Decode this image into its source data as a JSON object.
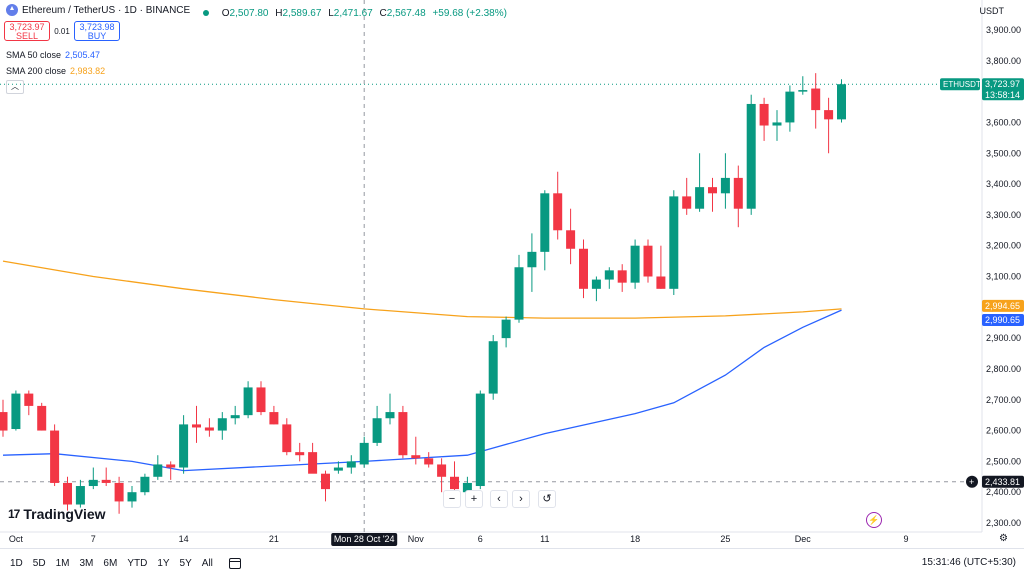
{
  "legend": {
    "title": "Ethereum / TetherUS · 1D · BINANCE",
    "open_k": "O",
    "open": "2,507.80",
    "high_k": "H",
    "high": "2,589.67",
    "low_k": "L",
    "low": "2,471.67",
    "close_k": "C",
    "close": "2,567.48",
    "change": "+59.68 (+2.38%)"
  },
  "trade": {
    "sell_price": "3,723.97",
    "sell_label": "SELL",
    "spread": "0.01",
    "buy_price": "3,723.98",
    "buy_label": "BUY"
  },
  "sma50": {
    "label": "SMA 50 close",
    "value": "2,505.47",
    "color": "#2962ff"
  },
  "sma200": {
    "label": "SMA 200 close",
    "value": "2,983.82",
    "color": "#f7a21b"
  },
  "collapse_icon": "chevron-up-icon",
  "currency": "USDT",
  "tags": {
    "symbol": "ETHUSDT",
    "last_price": "3,723.97",
    "countdown": "13:58:14",
    "sma200_tag": "2,994.65",
    "sma50_tag": "2,990.65",
    "crosshair_price": "2,433.81",
    "crosshair_date": "Mon 28 Oct '24"
  },
  "controls": {
    "zoom_out": "−",
    "zoom_in": "+",
    "scroll_left": "‹",
    "scroll_right": "›",
    "reset": "↺"
  },
  "logo": {
    "mark": "17",
    "text": "TradingView"
  },
  "bottom": {
    "ranges": [
      "1D",
      "5D",
      "1M",
      "3M",
      "6M",
      "YTD",
      "1Y",
      "5Y",
      "All"
    ],
    "time": "15:31:46 (UTC+5:30)"
  },
  "colors": {
    "up": "#089981",
    "down": "#f23645",
    "sma50": "#2962ff",
    "sma200": "#f7a21b"
  },
  "chart_data": {
    "type": "candlestick",
    "y_ticks": [
      2300,
      2400,
      2500,
      2600,
      2700,
      2800,
      2900,
      3000,
      3100,
      3200,
      3300,
      3400,
      3500,
      3600,
      3700,
      3800,
      3900
    ],
    "y_tick_labels": [
      "2,300.00",
      "2,400.00",
      "2,500.00",
      "2,600.00",
      "2,700.00",
      "2,800.00",
      "2,900.00",
      "3,000.00",
      "3,100.00",
      "3,200.00",
      "3,300.00",
      "3,400.00",
      "3,500.00",
      "3,600.00",
      "3,700.00",
      "3,800.00",
      "3,900.00"
    ],
    "ylim": [
      2290,
      3960
    ],
    "x_ticks": [
      {
        "label": "Oct",
        "date": "2024-10-01"
      },
      {
        "label": "7",
        "date": "2024-10-07"
      },
      {
        "label": "14",
        "date": "2024-10-14"
      },
      {
        "label": "21",
        "date": "2024-10-21"
      },
      {
        "label": "Nov",
        "date": "2024-11-01"
      },
      {
        "label": "6",
        "date": "2024-11-06"
      },
      {
        "label": "11",
        "date": "2024-11-11"
      },
      {
        "label": "18",
        "date": "2024-11-18"
      },
      {
        "label": "25",
        "date": "2024-11-25"
      },
      {
        "label": "Dec",
        "date": "2024-12-01"
      },
      {
        "label": "9",
        "date": "2024-12-09"
      }
    ],
    "candles": [
      {
        "date": "2024-09-30",
        "o": 2660,
        "h": 2700,
        "l": 2580,
        "c": 2600
      },
      {
        "date": "2024-10-01",
        "o": 2605,
        "h": 2730,
        "l": 2600,
        "c": 2720
      },
      {
        "date": "2024-10-02",
        "o": 2720,
        "h": 2730,
        "l": 2650,
        "c": 2680
      },
      {
        "date": "2024-10-03",
        "o": 2680,
        "h": 2690,
        "l": 2600,
        "c": 2600
      },
      {
        "date": "2024-10-04",
        "o": 2600,
        "h": 2620,
        "l": 2420,
        "c": 2430
      },
      {
        "date": "2024-10-05",
        "o": 2430,
        "h": 2450,
        "l": 2340,
        "c": 2360
      },
      {
        "date": "2024-10-06",
        "o": 2360,
        "h": 2440,
        "l": 2350,
        "c": 2420
      },
      {
        "date": "2024-10-07",
        "o": 2420,
        "h": 2480,
        "l": 2410,
        "c": 2440
      },
      {
        "date": "2024-10-08",
        "o": 2440,
        "h": 2480,
        "l": 2420,
        "c": 2430
      },
      {
        "date": "2024-10-09",
        "o": 2430,
        "h": 2450,
        "l": 2330,
        "c": 2370
      },
      {
        "date": "2024-10-10",
        "o": 2370,
        "h": 2420,
        "l": 2350,
        "c": 2400
      },
      {
        "date": "2024-10-11",
        "o": 2400,
        "h": 2460,
        "l": 2390,
        "c": 2450
      },
      {
        "date": "2024-10-12",
        "o": 2450,
        "h": 2520,
        "l": 2440,
        "c": 2490
      },
      {
        "date": "2024-10-13",
        "o": 2490,
        "h": 2500,
        "l": 2440,
        "c": 2480
      },
      {
        "date": "2024-10-14",
        "o": 2480,
        "h": 2650,
        "l": 2460,
        "c": 2620
      },
      {
        "date": "2024-10-15",
        "o": 2620,
        "h": 2680,
        "l": 2560,
        "c": 2610
      },
      {
        "date": "2024-10-16",
        "o": 2610,
        "h": 2640,
        "l": 2580,
        "c": 2600
      },
      {
        "date": "2024-10-17",
        "o": 2600,
        "h": 2660,
        "l": 2570,
        "c": 2640
      },
      {
        "date": "2024-10-18",
        "o": 2640,
        "h": 2680,
        "l": 2620,
        "c": 2650
      },
      {
        "date": "2024-10-19",
        "o": 2650,
        "h": 2760,
        "l": 2640,
        "c": 2740
      },
      {
        "date": "2024-10-20",
        "o": 2740,
        "h": 2760,
        "l": 2650,
        "c": 2660
      },
      {
        "date": "2024-10-21",
        "o": 2660,
        "h": 2680,
        "l": 2620,
        "c": 2620
      },
      {
        "date": "2024-10-22",
        "o": 2620,
        "h": 2640,
        "l": 2520,
        "c": 2530
      },
      {
        "date": "2024-10-23",
        "o": 2530,
        "h": 2560,
        "l": 2500,
        "c": 2520
      },
      {
        "date": "2024-10-24",
        "o": 2530,
        "h": 2560,
        "l": 2470,
        "c": 2460
      },
      {
        "date": "2024-10-25",
        "o": 2460,
        "h": 2470,
        "l": 2370,
        "c": 2410
      },
      {
        "date": "2024-10-26",
        "o": 2470,
        "h": 2500,
        "l": 2460,
        "c": 2480
      },
      {
        "date": "2024-10-27",
        "o": 2480,
        "h": 2520,
        "l": 2460,
        "c": 2500
      },
      {
        "date": "2024-10-28",
        "o": 2490,
        "h": 2580,
        "l": 2480,
        "c": 2560
      },
      {
        "date": "2024-10-29",
        "o": 2560,
        "h": 2680,
        "l": 2550,
        "c": 2640
      },
      {
        "date": "2024-10-30",
        "o": 2640,
        "h": 2720,
        "l": 2620,
        "c": 2660
      },
      {
        "date": "2024-10-31",
        "o": 2660,
        "h": 2680,
        "l": 2510,
        "c": 2520
      },
      {
        "date": "2024-11-01",
        "o": 2520,
        "h": 2580,
        "l": 2490,
        "c": 2510
      },
      {
        "date": "2024-11-02",
        "o": 2510,
        "h": 2530,
        "l": 2480,
        "c": 2490
      },
      {
        "date": "2024-11-03",
        "o": 2490,
        "h": 2510,
        "l": 2400,
        "c": 2450
      },
      {
        "date": "2024-11-04",
        "o": 2450,
        "h": 2500,
        "l": 2380,
        "c": 2410
      },
      {
        "date": "2024-11-05",
        "o": 2400,
        "h": 2450,
        "l": 2380,
        "c": 2430
      },
      {
        "date": "2024-11-06",
        "o": 2420,
        "h": 2730,
        "l": 2410,
        "c": 2720
      },
      {
        "date": "2024-11-07",
        "o": 2720,
        "h": 2910,
        "l": 2700,
        "c": 2890
      },
      {
        "date": "2024-11-08",
        "o": 2900,
        "h": 2970,
        "l": 2870,
        "c": 2960
      },
      {
        "date": "2024-11-09",
        "o": 2960,
        "h": 3170,
        "l": 2950,
        "c": 3130
      },
      {
        "date": "2024-11-10",
        "o": 3130,
        "h": 3240,
        "l": 3050,
        "c": 3180
      },
      {
        "date": "2024-11-11",
        "o": 3180,
        "h": 3380,
        "l": 3120,
        "c": 3370
      },
      {
        "date": "2024-11-12",
        "o": 3370,
        "h": 3440,
        "l": 3220,
        "c": 3250
      },
      {
        "date": "2024-11-13",
        "o": 3250,
        "h": 3320,
        "l": 3140,
        "c": 3190
      },
      {
        "date": "2024-11-14",
        "o": 3190,
        "h": 3220,
        "l": 3030,
        "c": 3060
      },
      {
        "date": "2024-11-15",
        "o": 3060,
        "h": 3100,
        "l": 3020,
        "c": 3090
      },
      {
        "date": "2024-11-16",
        "o": 3090,
        "h": 3130,
        "l": 3060,
        "c": 3120
      },
      {
        "date": "2024-11-17",
        "o": 3120,
        "h": 3140,
        "l": 3050,
        "c": 3080
      },
      {
        "date": "2024-11-18",
        "o": 3080,
        "h": 3220,
        "l": 3060,
        "c": 3200
      },
      {
        "date": "2024-11-19",
        "o": 3200,
        "h": 3220,
        "l": 3080,
        "c": 3100
      },
      {
        "date": "2024-11-20",
        "o": 3100,
        "h": 3200,
        "l": 3060,
        "c": 3060
      },
      {
        "date": "2024-11-21",
        "o": 3060,
        "h": 3380,
        "l": 3040,
        "c": 3360
      },
      {
        "date": "2024-11-22",
        "o": 3360,
        "h": 3420,
        "l": 3300,
        "c": 3320
      },
      {
        "date": "2024-11-23",
        "o": 3320,
        "h": 3500,
        "l": 3310,
        "c": 3390
      },
      {
        "date": "2024-11-24",
        "o": 3390,
        "h": 3420,
        "l": 3310,
        "c": 3370
      },
      {
        "date": "2024-11-25",
        "o": 3370,
        "h": 3500,
        "l": 3320,
        "c": 3420
      },
      {
        "date": "2024-11-26",
        "o": 3420,
        "h": 3460,
        "l": 3260,
        "c": 3320
      },
      {
        "date": "2024-11-27",
        "o": 3320,
        "h": 3690,
        "l": 3300,
        "c": 3660
      },
      {
        "date": "2024-11-28",
        "o": 3660,
        "h": 3680,
        "l": 3540,
        "c": 3590
      },
      {
        "date": "2024-11-29",
        "o": 3590,
        "h": 3640,
        "l": 3540,
        "c": 3600
      },
      {
        "date": "2024-11-30",
        "o": 3600,
        "h": 3720,
        "l": 3570,
        "c": 3700
      },
      {
        "date": "2024-12-01",
        "o": 3700,
        "h": 3750,
        "l": 3690,
        "c": 3705
      },
      {
        "date": "2024-12-02",
        "o": 3710,
        "h": 3760,
        "l": 3580,
        "c": 3640
      },
      {
        "date": "2024-12-03",
        "o": 3640,
        "h": 3680,
        "l": 3500,
        "c": 3610
      },
      {
        "date": "2024-12-04",
        "o": 3610,
        "h": 3740,
        "l": 3600,
        "c": 3724
      }
    ],
    "sma50": [
      {
        "date": "2024-09-30",
        "v": 2520
      },
      {
        "date": "2024-10-04",
        "v": 2525
      },
      {
        "date": "2024-10-10",
        "v": 2500
      },
      {
        "date": "2024-10-14",
        "v": 2470
      },
      {
        "date": "2024-10-21",
        "v": 2485
      },
      {
        "date": "2024-10-28",
        "v": 2500
      },
      {
        "date": "2024-11-05",
        "v": 2520
      },
      {
        "date": "2024-11-11",
        "v": 2590
      },
      {
        "date": "2024-11-18",
        "v": 2655
      },
      {
        "date": "2024-11-21",
        "v": 2690
      },
      {
        "date": "2024-11-25",
        "v": 2780
      },
      {
        "date": "2024-11-28",
        "v": 2870
      },
      {
        "date": "2024-12-01",
        "v": 2935
      },
      {
        "date": "2024-12-04",
        "v": 2991
      }
    ],
    "sma200": [
      {
        "date": "2024-09-30",
        "v": 3150
      },
      {
        "date": "2024-10-07",
        "v": 3100
      },
      {
        "date": "2024-10-14",
        "v": 3060
      },
      {
        "date": "2024-10-21",
        "v": 3025
      },
      {
        "date": "2024-10-28",
        "v": 2995
      },
      {
        "date": "2024-11-05",
        "v": 2970
      },
      {
        "date": "2024-11-11",
        "v": 2965
      },
      {
        "date": "2024-11-18",
        "v": 2965
      },
      {
        "date": "2024-11-25",
        "v": 2972
      },
      {
        "date": "2024-12-01",
        "v": 2985
      },
      {
        "date": "2024-12-04",
        "v": 2995
      }
    ],
    "crosshair": {
      "date": "2024-10-28",
      "price": 2433.81
    }
  }
}
